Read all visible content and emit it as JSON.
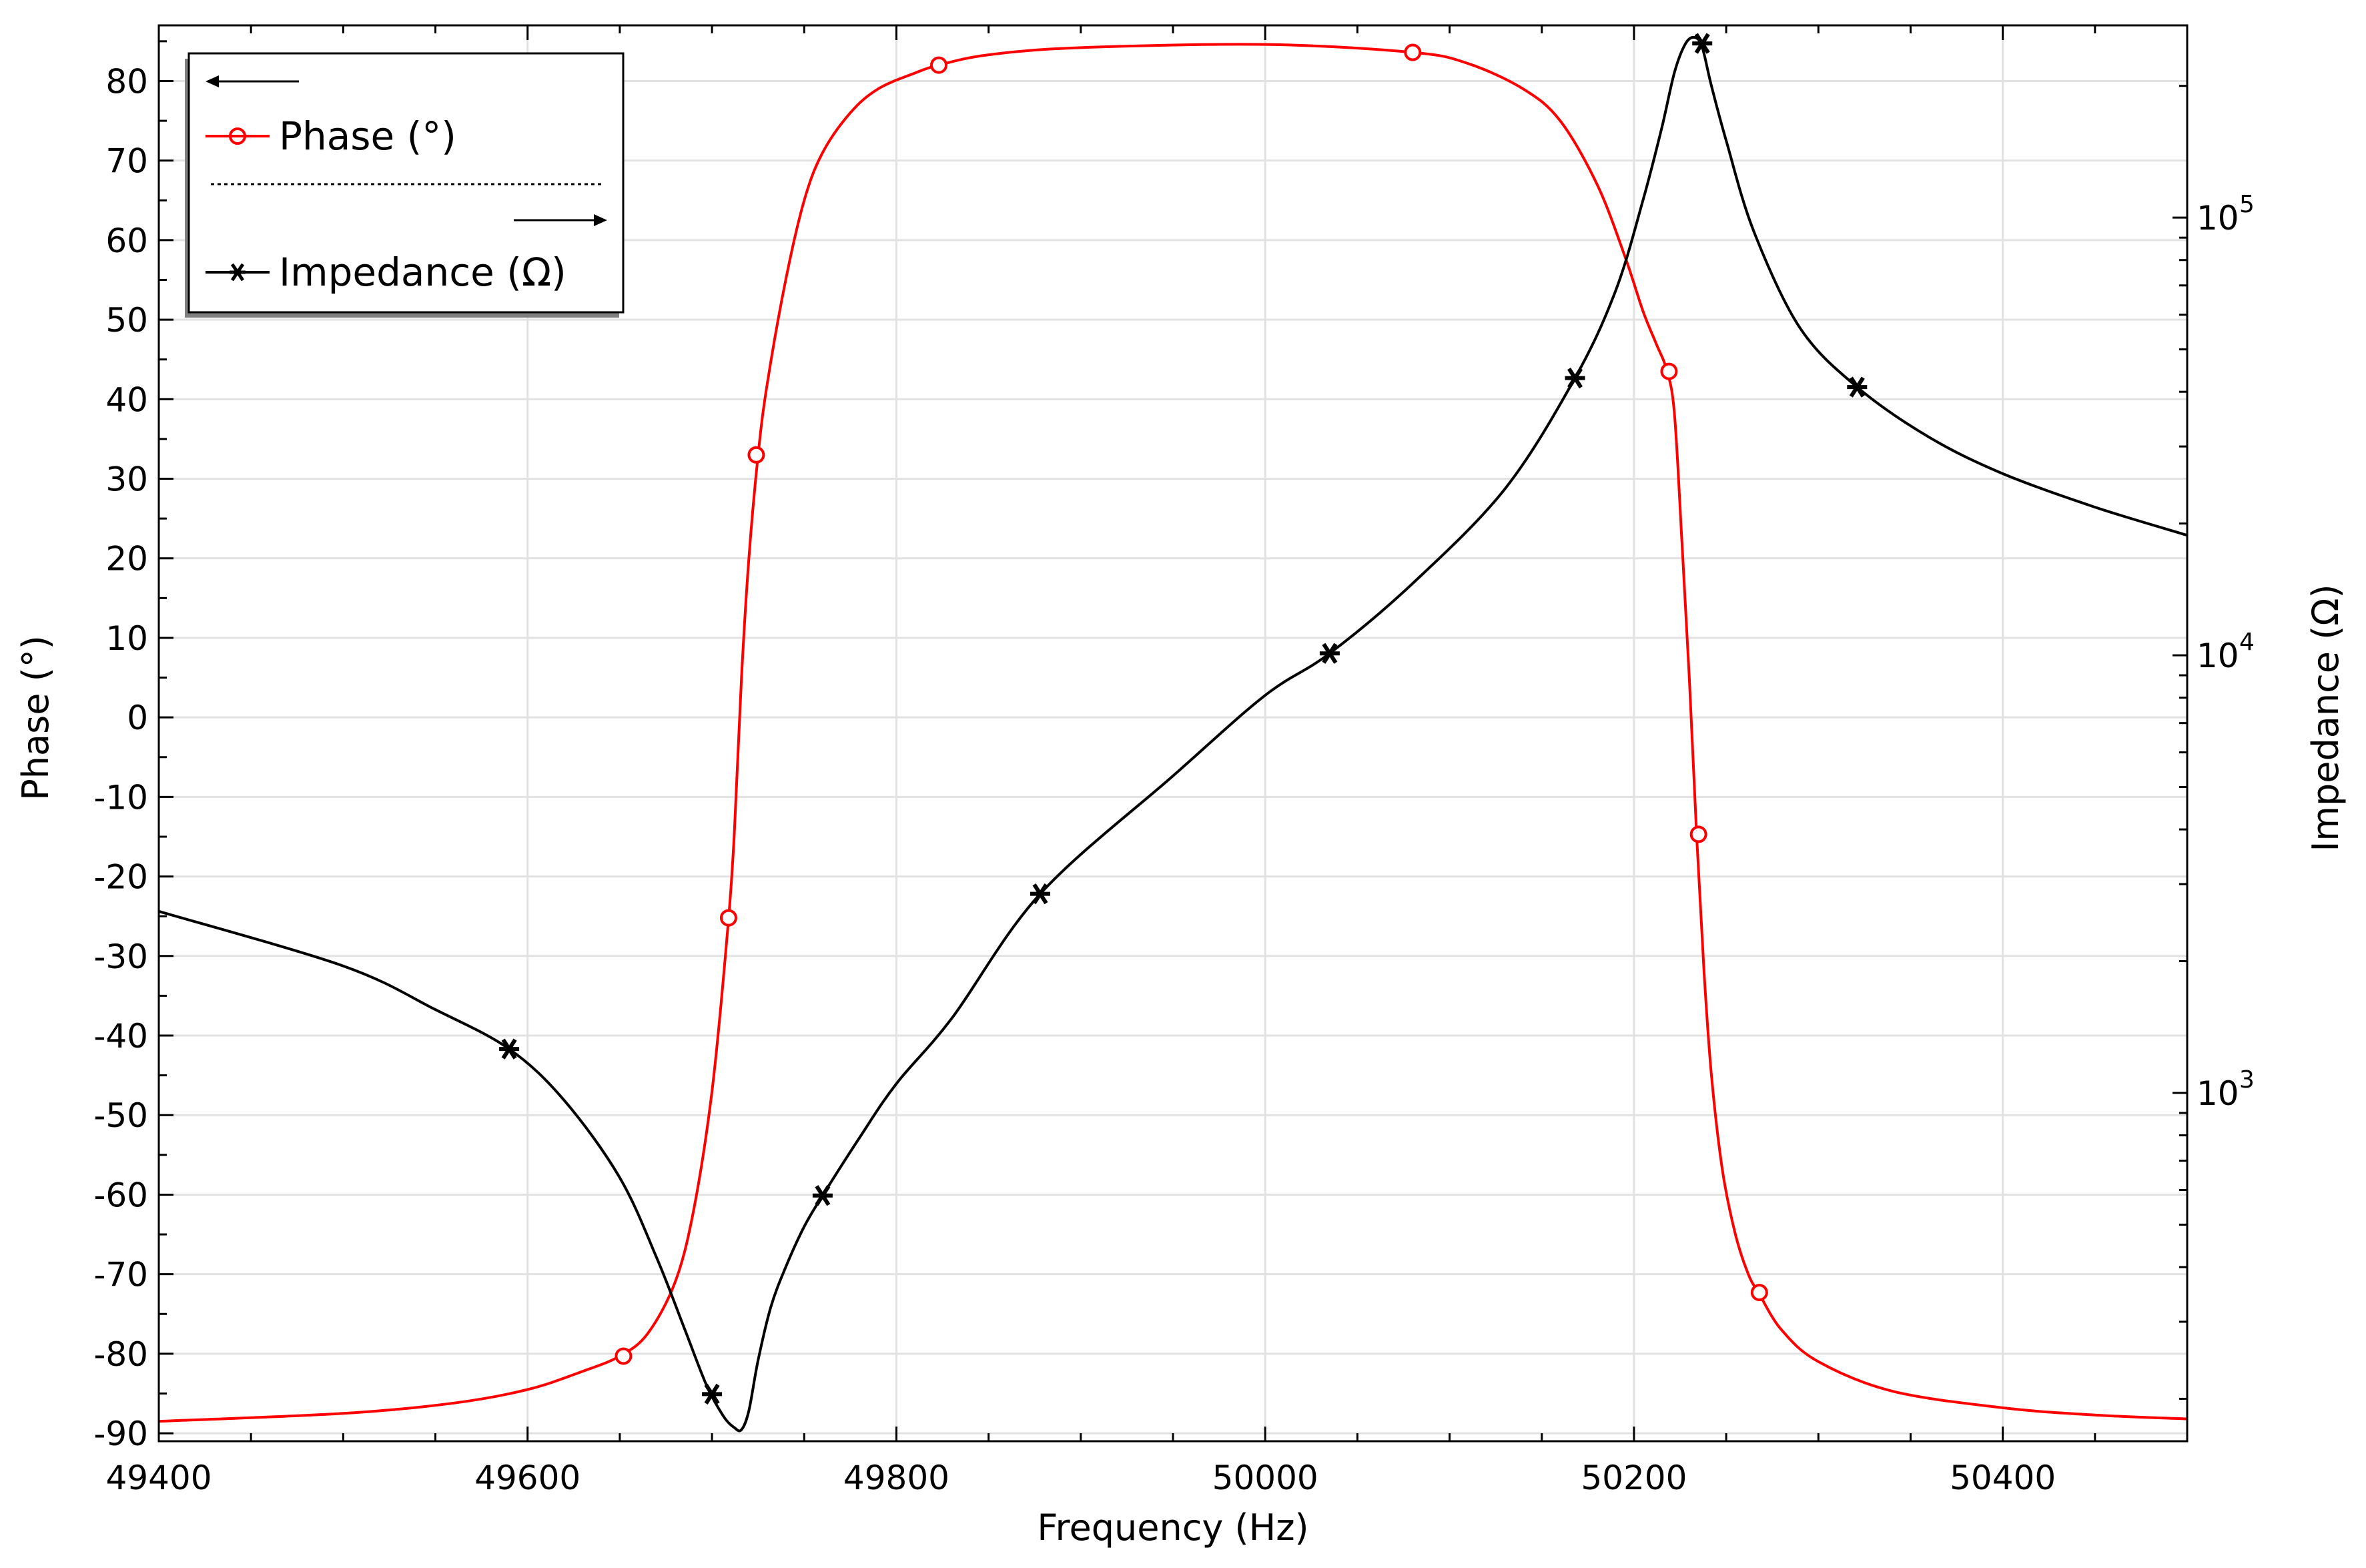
{
  "chart_data": {
    "type": "line",
    "xlabel": "Frequency (Hz)",
    "ylabel_left": "Phase (°)",
    "ylabel_right": "Impedance (Ω)",
    "xlim": [
      49400,
      50500
    ],
    "ylim_left": [
      -91,
      87
    ],
    "ylim_right": [
      160,
      275000
    ],
    "y_right_scale": "log",
    "grid": true,
    "legend_placement": "top-left",
    "x_ticks": [
      49400,
      49600,
      49800,
      50000,
      50200,
      50400
    ],
    "x_tick_labels": [
      "49400",
      "49600",
      "49800",
      "50000",
      "50200",
      "50400"
    ],
    "y_left_ticks": [
      80,
      70,
      60,
      50,
      40,
      30,
      20,
      10,
      0,
      -10,
      -20,
      -30,
      -40,
      -50,
      -60,
      -70,
      -80,
      -90
    ],
    "y_left_tick_labels": [
      "80",
      "70",
      "60",
      "50",
      "40",
      "30",
      "20",
      "10",
      "0",
      "-10",
      "-20",
      "-30",
      "-40",
      "-50",
      "-60",
      "-70",
      "-80",
      "-90"
    ],
    "y_right_major_ticks": [
      {
        "value": 1000,
        "base": "10",
        "exp": "3"
      },
      {
        "value": 10000,
        "base": "10",
        "exp": "4"
      },
      {
        "value": 100000,
        "base": "10",
        "exp": "5"
      }
    ],
    "series": [
      {
        "name": "Phase (°)",
        "axis": "left",
        "color": "#ff0000",
        "marker": "circle",
        "x": [
          49400,
          49500,
          49560,
          49600,
          49630,
          49650,
          49665,
          49680,
          49690,
          49700,
          49708,
          49712,
          49716,
          49720,
          49725,
          49730,
          49740,
          49750,
          49760,
          49775,
          49790,
          49810,
          49823,
          49850,
          49900,
          50000,
          50080,
          50110,
          50140,
          50160,
          50180,
          50195,
          50205,
          50212,
          50218,
          50222,
          50226,
          50230,
          50234,
          50238,
          50242,
          50248,
          50255,
          50262,
          50268,
          50280,
          50300,
          50340,
          50400,
          50450,
          50500
        ],
        "y": [
          -88.5,
          -87.5,
          -86.2,
          -84.5,
          -82.2,
          -80.3,
          -77.5,
          -71,
          -62,
          -47,
          -28,
          -15,
          5,
          20,
          33,
          42,
          55,
          65,
          71,
          76,
          79,
          81,
          82,
          83.3,
          84.2,
          84.6,
          83.6,
          82.2,
          79,
          75,
          67,
          58,
          51,
          47,
          43.5,
          38,
          22,
          5,
          -15,
          -32,
          -45,
          -57,
          -65,
          -70,
          -72.5,
          -77,
          -81,
          -84.7,
          -86.8,
          -87.7,
          -88.2
        ],
        "markers_x": [
          49652,
          49709,
          49724,
          49823,
          50080,
          50219,
          50235,
          50268
        ],
        "markers_y": [
          -80.3,
          -25.2,
          33,
          82,
          83.6,
          43.5,
          -14.7,
          -72.3
        ]
      },
      {
        "name": "Impedance (Ω)",
        "axis": "right",
        "color": "#000000",
        "marker": "asterisk",
        "x": [
          49400,
          49500,
          49550,
          49590,
          49620,
          49650,
          49670,
          49685,
          49697,
          49706,
          49712,
          49716,
          49720,
          49725,
          49732,
          49740,
          49750,
          49760,
          49780,
          49800,
          49830,
          49878,
          49950,
          50000,
          50035,
          50080,
          50130,
          50168,
          50190,
          50205,
          50215,
          50222,
          50228,
          50233,
          50237,
          50242,
          50250,
          50265,
          50290,
          50321,
          50360,
          50400,
          50450,
          50500
        ],
        "y": [
          2600,
          1950,
          1550,
          1260,
          960,
          640,
          420,
          290,
          215,
          183,
          172,
          170,
          188,
          245,
          325,
          400,
          495,
          583,
          790,
          1050,
          1480,
          2850,
          5300,
          8100,
          10100,
          14600,
          24000,
          43000,
          68000,
          110000,
          160000,
          215000,
          250000,
          258000,
          245000,
          200000,
          150000,
          93000,
          56000,
          41000,
          31500,
          26000,
          21800,
          18800
        ],
        "markers_x": [
          49590,
          49700,
          49760,
          49878,
          50035,
          50168,
          50237,
          50321
        ],
        "markers_y": [
          1260,
          205,
          583,
          2850,
          10100,
          43000,
          250000,
          41000
        ]
      }
    ]
  }
}
